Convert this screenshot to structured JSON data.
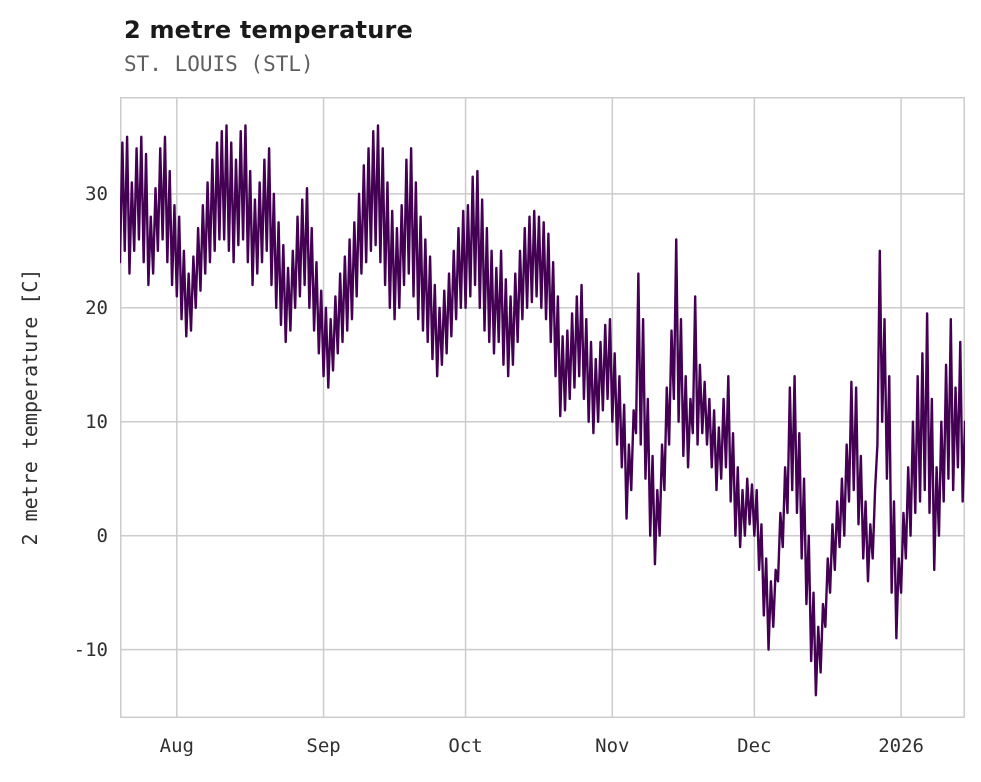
{
  "header": {
    "title": "2 metre temperature",
    "subtitle": "ST. LOUIS (STL)"
  },
  "chart_data": {
    "type": "line",
    "title": "2 metre temperature",
    "subtitle": "ST. LOUIS (STL)",
    "xlabel": "",
    "ylabel": "2 metre temperature [C]",
    "ylim": [
      -16,
      38.5
    ],
    "yticks": [
      -10,
      0,
      10,
      20,
      30
    ],
    "x_tick_labels": [
      "Aug",
      "Sep",
      "Oct",
      "Nov",
      "Dec",
      "2026"
    ],
    "x_tick_point_index": [
      24,
      86,
      146,
      208,
      268,
      330
    ],
    "grid": true,
    "legend": "none",
    "line_color": "#440154",
    "grid_color": "#cccccc",
    "sampling": "two points per day (daily min, daily max), late Jul through mid Jan",
    "values": [
      24,
      34.5,
      25,
      35,
      23,
      31,
      25,
      34,
      26,
      35,
      24,
      33.5,
      22,
      28,
      23,
      30.5,
      25,
      34,
      26,
      35,
      24,
      32,
      22,
      29,
      21,
      28,
      19,
      25,
      17.5,
      23,
      18,
      24.5,
      20,
      27,
      21.5,
      29,
      23,
      31,
      24,
      33,
      25,
      34.5,
      26,
      35.5,
      26,
      36,
      25,
      34.5,
      24,
      33,
      25.5,
      35.5,
      26,
      36,
      24,
      32,
      22,
      29.5,
      23,
      31,
      24,
      33,
      25,
      34,
      22,
      30,
      20,
      27.5,
      18.5,
      25.5,
      17,
      23.5,
      18,
      25,
      20,
      28,
      21,
      29.5,
      22,
      30.5,
      20,
      27,
      18,
      24,
      16,
      21.5,
      14,
      20,
      13,
      19,
      14.5,
      21,
      16,
      23,
      17,
      24.5,
      18,
      26,
      19,
      27.5,
      21,
      30,
      23,
      32.5,
      24,
      34,
      25,
      35.5,
      25.5,
      36,
      24,
      34,
      22,
      31,
      20,
      28.5,
      19,
      27,
      20,
      29,
      22,
      33,
      23,
      34,
      21,
      31,
      19,
      28,
      18,
      26,
      17,
      24.5,
      15.5,
      22,
      14,
      20,
      15,
      21.5,
      16,
      23,
      17.5,
      25,
      19,
      27,
      20,
      28.5,
      20,
      29,
      21,
      31.5,
      22,
      32,
      20,
      29.5,
      18,
      27,
      17,
      25,
      16,
      23.5,
      17,
      25,
      15,
      22.5,
      14,
      21,
      15,
      23,
      17,
      25,
      19,
      27,
      20,
      28,
      20.5,
      28.5,
      21,
      28,
      20,
      27.5,
      19,
      26.5,
      17,
      24,
      14,
      21,
      10.5,
      17.5,
      11,
      18,
      12,
      19.5,
      13,
      21,
      14,
      22,
      12,
      19,
      10,
      17,
      9,
      15.5,
      10,
      17,
      11,
      18.5,
      12,
      19,
      10,
      16,
      8,
      14,
      6,
      11.5,
      1.5,
      8,
      4,
      11,
      9,
      23,
      8,
      19,
      5,
      12,
      0,
      7,
      -2.5,
      4,
      0,
      8,
      4,
      13,
      8,
      18,
      12,
      26,
      10,
      19,
      7,
      14,
      6,
      12,
      9,
      21,
      8,
      15,
      9,
      13.5,
      8,
      12,
      6,
      11,
      4,
      9.5,
      5,
      12,
      6,
      14,
      3,
      9,
      0,
      6,
      -1,
      4,
      0,
      5,
      1,
      4.5,
      0,
      4,
      -3,
      1,
      -7,
      -2,
      -10,
      -4,
      -8,
      -3,
      -4,
      2,
      -1,
      6,
      2,
      13,
      4,
      14,
      2,
      9,
      -2,
      5,
      -6,
      0,
      -11,
      -5,
      -14,
      -8,
      -12,
      -6,
      -8,
      -2,
      -5,
      1,
      -3,
      3,
      -1,
      5,
      0,
      8,
      3,
      13.5,
      4,
      13,
      1,
      7,
      -2,
      3,
      -4,
      1,
      -2,
      4,
      8,
      25,
      10,
      19,
      5,
      14,
      -5,
      3,
      -9,
      -2,
      -5,
      2,
      -2,
      6,
      0,
      10,
      2,
      14,
      3,
      16,
      4,
      19.5,
      2,
      12,
      -3,
      6,
      0,
      10,
      3,
      15,
      5,
      19,
      4,
      13,
      6,
      17,
      3,
      10
    ]
  }
}
